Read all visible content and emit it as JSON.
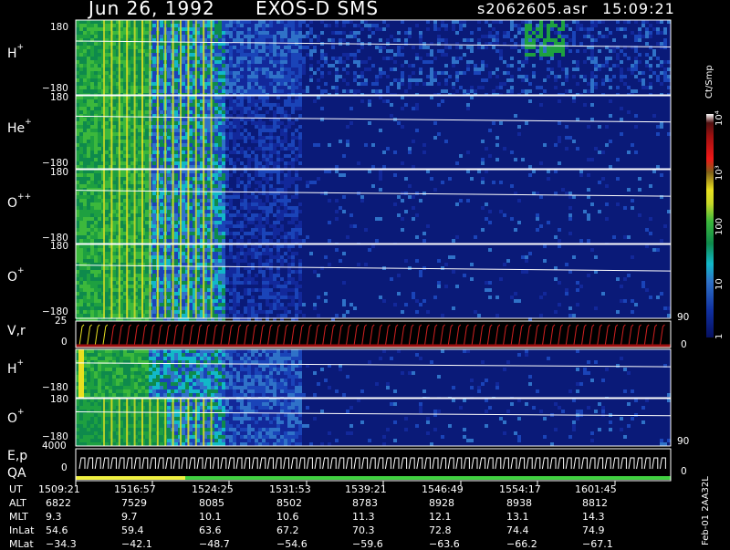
{
  "header": {
    "date": "Jun 26, 1992",
    "instrument": "EXOS-D SMS",
    "file": "s2062605.asr",
    "time": "15:09:21"
  },
  "panels": [
    {
      "id": "h1",
      "label": "H",
      "sup": "+",
      "top": "180",
      "bottom": "−180"
    },
    {
      "id": "he",
      "label": "He",
      "sup": "+",
      "top": "180",
      "bottom": "−180"
    },
    {
      "id": "opp",
      "label": "O",
      "sup": "++",
      "top": "180",
      "bottom": "−180"
    },
    {
      "id": "o1",
      "label": "O",
      "sup": "+",
      "top": "180",
      "bottom": "−180"
    },
    {
      "id": "vr",
      "label": "V,r",
      "top": "25",
      "bottom": "0",
      "right_top": "90",
      "right_bottom": "0"
    },
    {
      "id": "h2",
      "label": "H",
      "sup": "+",
      "top": "",
      "bottom": "−180"
    },
    {
      "id": "o2",
      "label": "O",
      "sup": "+",
      "top": "180",
      "bottom": "−180",
      "right_bottom": "90"
    },
    {
      "id": "ep",
      "label": "E,p",
      "label2": "QA",
      "top": "4000",
      "bottom": "0",
      "right_bottom": "0"
    }
  ],
  "colorbar": {
    "unit": "Ct/Smp",
    "labels": [
      "10⁴",
      "10³",
      "100",
      "10",
      "1"
    ]
  },
  "table": {
    "rows": [
      {
        "name": "UT",
        "values": [
          "1509:21",
          "1516:57",
          "1524:25",
          "1531:53",
          "1539:21",
          "1546:49",
          "1554:17",
          "1601:45"
        ]
      },
      {
        "name": "ALT",
        "values": [
          "6822",
          "7529",
          "8085",
          "8502",
          "8783",
          "8928",
          "8938",
          "8812"
        ]
      },
      {
        "name": "MLT",
        "values": [
          "9.3",
          "9.7",
          "10.1",
          "10.6",
          "11.3",
          "12.1",
          "13.1",
          "14.3"
        ]
      },
      {
        "name": "InLat",
        "values": [
          "54.6",
          "59.4",
          "63.6",
          "67.2",
          "70.3",
          "72.8",
          "74.4",
          "74.9"
        ]
      },
      {
        "name": "MLat",
        "values": [
          "−34.3",
          "−42.1",
          "−48.7",
          "−54.6",
          "−59.6",
          "−63.6",
          "−66.2",
          "−67.1"
        ]
      }
    ]
  },
  "footer": {
    "stamp": "Feb-01 2AA32L"
  },
  "colors": {
    "background": "#000000",
    "panel_fill": "#0a1a78",
    "vr_fill": "#a01010",
    "qa_good": "#40d040",
    "qa_warn": "#f0f040"
  },
  "chart_data": {
    "type": "heatmap",
    "title": "Jun 26, 1992   EXOS-D SMS",
    "x_ticks": [
      "1509:21",
      "1516:57",
      "1524:25",
      "1531:53",
      "1539:21",
      "1546:49",
      "1554:17",
      "1601:45"
    ],
    "y_range_pitch": [
      -180,
      180
    ],
    "colorbar_range": [
      1,
      10000
    ],
    "colorbar_scale": "log",
    "panels": [
      "H+",
      "He+",
      "O++",
      "O+",
      "V,r",
      "H+",
      "O+",
      "E,p / QA"
    ]
  }
}
